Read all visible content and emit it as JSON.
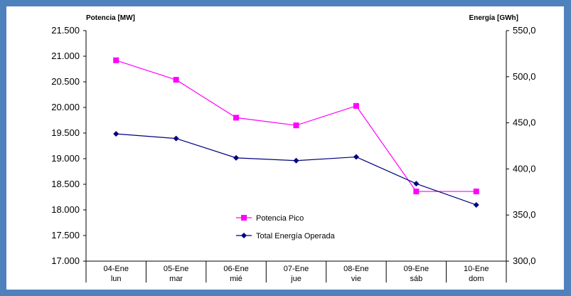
{
  "chart_data": {
    "type": "line",
    "categories": [
      {
        "date": "04-Ene",
        "day": "lun"
      },
      {
        "date": "05-Ene",
        "day": "mar"
      },
      {
        "date": "06-Ene",
        "day": "mié"
      },
      {
        "date": "07-Ene",
        "day": "jue"
      },
      {
        "date": "08-Ene",
        "day": "vie"
      },
      {
        "date": "09-Ene",
        "day": "sáb"
      },
      {
        "date": "10-Ene",
        "day": "dom"
      }
    ],
    "y_left": {
      "label": "Potencia [MW]",
      "ylim": [
        17000,
        21500
      ],
      "ticks": [
        "21.500",
        "21.000",
        "20.500",
        "20.000",
        "19.500",
        "19.000",
        "18.500",
        "18.000",
        "17.500",
        "17.000"
      ]
    },
    "y_right": {
      "label": "Energía [GWh]",
      "ylim": [
        300,
        550
      ],
      "ticks": [
        "550,0",
        "500,0",
        "450,0",
        "400,0",
        "350,0",
        "300,0"
      ]
    },
    "series": [
      {
        "name": "Potencia Pico",
        "axis": "left",
        "color": "#ff00ff",
        "marker": "square",
        "values": [
          20920,
          20540,
          19800,
          19650,
          20030,
          18360,
          18360
        ]
      },
      {
        "name": "Total Energía Operada",
        "axis": "right",
        "color": "#000080",
        "marker": "diamond",
        "values": [
          438,
          433,
          412,
          409,
          413,
          384,
          361
        ]
      }
    ],
    "legend_position": "bottom-center",
    "grid": false
  }
}
